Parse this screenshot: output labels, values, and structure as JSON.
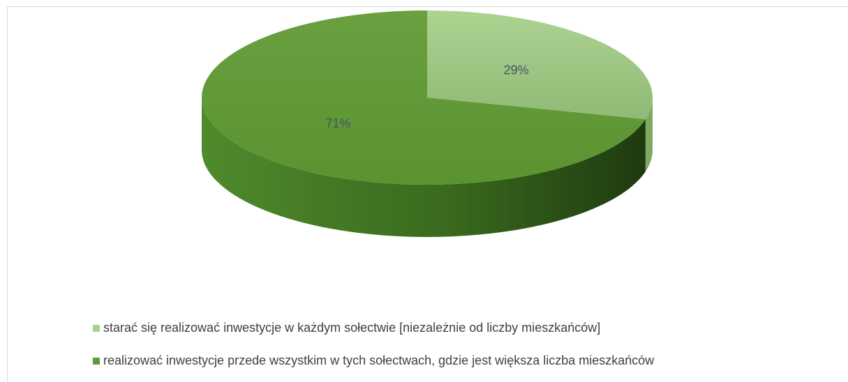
{
  "chart_data": {
    "type": "pie",
    "categories": [
      "starać się realizować inwestycje w każdym sołectwie [niezależnie od liczby mieszkańców]",
      "realizować inwestycje przede wszystkim w tych sołectwach, gdzie jest większa liczba mieszkańców"
    ],
    "values": [
      29,
      71
    ],
    "value_labels": [
      "29%",
      "71%"
    ],
    "colors": [
      "#a9d18e",
      "#5e9b35"
    ],
    "legend": "bottom"
  }
}
